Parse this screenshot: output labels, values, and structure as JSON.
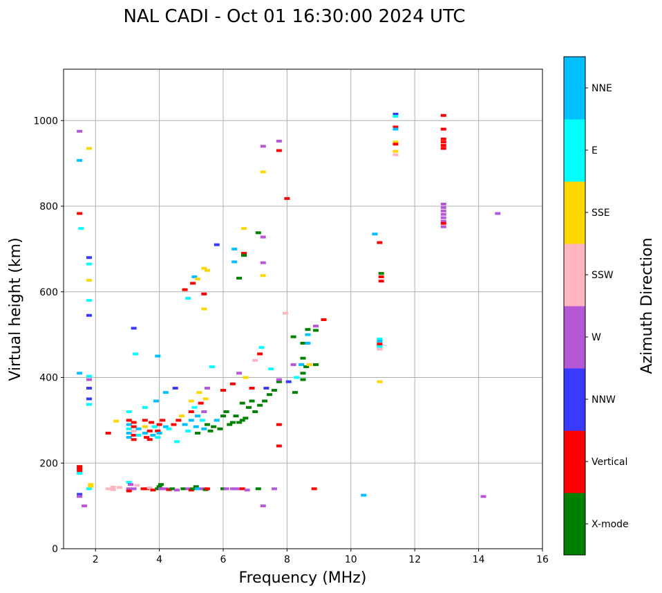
{
  "chart_data": {
    "type": "scatter",
    "title": "NAL CADI - Oct 01 16:30:00 2024 UTC",
    "xlabel": "Frequency (MHz)",
    "ylabel": "Virtual height (km)",
    "xlim": [
      1,
      16
    ],
    "ylim": [
      0,
      1120
    ],
    "xticks": [
      2,
      4,
      6,
      8,
      10,
      12,
      14,
      16
    ],
    "yticks": [
      0,
      200,
      400,
      600,
      800,
      1000
    ],
    "grid": true,
    "colorbar": {
      "label": "Azimuth Direction",
      "categories": [
        {
          "name": "X-mode",
          "color": "#008000"
        },
        {
          "name": "Vertical",
          "color": "#ff0000"
        },
        {
          "name": "NNW",
          "color": "#3a3aff"
        },
        {
          "name": "W",
          "color": "#b657d6"
        },
        {
          "name": "SSW",
          "color": "#ffb6c1"
        },
        {
          "name": "SSE",
          "color": "#ffd700"
        },
        {
          "name": "E",
          "color": "#00ffff"
        },
        {
          "name": "NNE",
          "color": "#00bfff"
        }
      ]
    },
    "points_format": [
      "frequency_mhz",
      "virtual_height_km",
      "category_index"
    ],
    "points": [
      [
        1.5,
        975,
        3
      ],
      [
        1.5,
        907,
        7
      ],
      [
        1.5,
        783,
        1
      ],
      [
        1.55,
        748,
        6
      ],
      [
        1.5,
        410,
        7
      ],
      [
        1.5,
        192,
        1
      ],
      [
        1.5,
        186,
        1
      ],
      [
        1.5,
        180,
        1
      ],
      [
        1.5,
        176,
        6
      ],
      [
        1.5,
        127,
        2
      ],
      [
        1.5,
        122,
        3
      ],
      [
        1.65,
        100,
        3
      ],
      [
        1.8,
        935,
        5
      ],
      [
        1.8,
        680,
        2
      ],
      [
        1.8,
        665,
        6
      ],
      [
        1.8,
        627,
        5
      ],
      [
        1.8,
        580,
        6
      ],
      [
        1.8,
        545,
        2
      ],
      [
        1.8,
        403,
        6
      ],
      [
        1.8,
        395,
        3
      ],
      [
        1.8,
        375,
        2
      ],
      [
        1.8,
        350,
        2
      ],
      [
        1.8,
        337,
        6
      ],
      [
        1.85,
        150,
        5
      ],
      [
        1.8,
        140,
        6
      ],
      [
        1.85,
        146,
        5
      ],
      [
        2.4,
        270,
        1
      ],
      [
        2.65,
        298,
        5
      ],
      [
        2.4,
        140,
        4
      ],
      [
        2.55,
        138,
        4
      ],
      [
        2.55,
        144,
        4
      ],
      [
        2.75,
        143,
        4
      ],
      [
        3.05,
        320,
        6
      ],
      [
        3.05,
        300,
        1
      ],
      [
        3.05,
        290,
        7
      ],
      [
        3.05,
        280,
        6
      ],
      [
        3.05,
        270,
        7
      ],
      [
        3.05,
        260,
        7
      ],
      [
        3.2,
        295,
        1
      ],
      [
        3.2,
        285,
        1
      ],
      [
        3.2,
        275,
        4
      ],
      [
        3.2,
        265,
        1
      ],
      [
        3.2,
        255,
        1
      ],
      [
        3.35,
        280,
        7
      ],
      [
        3.35,
        265,
        6
      ],
      [
        3.55,
        330,
        6
      ],
      [
        3.55,
        300,
        1
      ],
      [
        3.55,
        285,
        5
      ],
      [
        3.55,
        270,
        7
      ],
      [
        3.6,
        260,
        1
      ],
      [
        3.7,
        255,
        1
      ],
      [
        3.7,
        275,
        1
      ],
      [
        3.75,
        295,
        1
      ],
      [
        3.8,
        265,
        7
      ],
      [
        3.85,
        285,
        6
      ],
      [
        3.9,
        345,
        7
      ],
      [
        3.95,
        275,
        1
      ],
      [
        3.95,
        260,
        6
      ],
      [
        4.0,
        290,
        1
      ],
      [
        4.0,
        270,
        7
      ],
      [
        4.1,
        300,
        1
      ],
      [
        4.2,
        285,
        7
      ],
      [
        4.2,
        365,
        7
      ],
      [
        4.3,
        280,
        6
      ],
      [
        4.45,
        290,
        1
      ],
      [
        4.5,
        375,
        2
      ],
      [
        4.55,
        250,
        6
      ],
      [
        4.6,
        300,
        1
      ],
      [
        4.7,
        310,
        5
      ],
      [
        4.8,
        290,
        7
      ],
      [
        4.9,
        275,
        6
      ],
      [
        5.0,
        300,
        7
      ],
      [
        5.0,
        320,
        1
      ],
      [
        5.0,
        345,
        5
      ],
      [
        5.1,
        330,
        6
      ],
      [
        5.15,
        285,
        7
      ],
      [
        5.2,
        310,
        7
      ],
      [
        5.2,
        270,
        0
      ],
      [
        5.25,
        365,
        5
      ],
      [
        5.3,
        340,
        1
      ],
      [
        5.35,
        300,
        6
      ],
      [
        5.4,
        280,
        7
      ],
      [
        5.4,
        320,
        3
      ],
      [
        5.45,
        350,
        5
      ],
      [
        5.5,
        375,
        3
      ],
      [
        5.5,
        290,
        0
      ],
      [
        5.6,
        275,
        0
      ],
      [
        5.65,
        425,
        6
      ],
      [
        5.7,
        285,
        0
      ],
      [
        5.8,
        300,
        7
      ],
      [
        5.9,
        280,
        0
      ],
      [
        6.0,
        310,
        0
      ],
      [
        6.0,
        370,
        1
      ],
      [
        6.1,
        320,
        0
      ],
      [
        6.2,
        290,
        0
      ],
      [
        6.3,
        295,
        0
      ],
      [
        6.3,
        385,
        1
      ],
      [
        6.4,
        310,
        0
      ],
      [
        6.5,
        295,
        0
      ],
      [
        6.5,
        410,
        3
      ],
      [
        6.6,
        300,
        0
      ],
      [
        6.6,
        340,
        0
      ],
      [
        6.7,
        305,
        0
      ],
      [
        6.7,
        400,
        5
      ],
      [
        6.8,
        330,
        0
      ],
      [
        6.9,
        345,
        0
      ],
      [
        6.9,
        375,
        1
      ],
      [
        7.0,
        320,
        0
      ],
      [
        7.0,
        440,
        4
      ],
      [
        7.15,
        335,
        0
      ],
      [
        7.15,
        455,
        1
      ],
      [
        7.2,
        470,
        6
      ],
      [
        7.3,
        345,
        0
      ],
      [
        7.35,
        375,
        2
      ],
      [
        7.45,
        360,
        0
      ],
      [
        7.5,
        420,
        6
      ],
      [
        7.6,
        370,
        0
      ],
      [
        7.75,
        390,
        0
      ],
      [
        7.75,
        395,
        3
      ],
      [
        7.75,
        290,
        1
      ],
      [
        7.75,
        240,
        1
      ],
      [
        7.95,
        550,
        4
      ],
      [
        8.05,
        390,
        2
      ],
      [
        8.25,
        365,
        0
      ],
      [
        8.3,
        400,
        6
      ],
      [
        8.2,
        430,
        3
      ],
      [
        8.45,
        430,
        7
      ],
      [
        8.5,
        395,
        0
      ],
      [
        8.5,
        410,
        0
      ],
      [
        8.6,
        425,
        0
      ],
      [
        8.7,
        430,
        5
      ],
      [
        8.9,
        430,
        0
      ],
      [
        8.5,
        445,
        0
      ],
      [
        8.5,
        480,
        0
      ],
      [
        8.65,
        480,
        7
      ],
      [
        8.2,
        495,
        0
      ],
      [
        8.65,
        500,
        7
      ],
      [
        8.65,
        512,
        0
      ],
      [
        8.9,
        510,
        0
      ],
      [
        8.9,
        520,
        3
      ],
      [
        9.15,
        535,
        1
      ],
      [
        3.25,
        455,
        6
      ],
      [
        3.95,
        450,
        7
      ],
      [
        3.2,
        515,
        2
      ],
      [
        4.8,
        605,
        1
      ],
      [
        4.9,
        585,
        6
      ],
      [
        5.05,
        620,
        1
      ],
      [
        5.1,
        635,
        7
      ],
      [
        5.2,
        630,
        5
      ],
      [
        5.4,
        595,
        1
      ],
      [
        5.4,
        560,
        5
      ],
      [
        5.4,
        655,
        5
      ],
      [
        5.5,
        650,
        5
      ],
      [
        5.8,
        710,
        2
      ],
      [
        6.35,
        700,
        7
      ],
      [
        6.35,
        670,
        7
      ],
      [
        6.5,
        632,
        0
      ],
      [
        6.65,
        690,
        1
      ],
      [
        6.65,
        685,
        0
      ],
      [
        6.65,
        748,
        5
      ],
      [
        7.1,
        738,
        0
      ],
      [
        7.25,
        728,
        3
      ],
      [
        7.25,
        668,
        3
      ],
      [
        7.25,
        638,
        5
      ],
      [
        7.25,
        940,
        3
      ],
      [
        7.25,
        880,
        5
      ],
      [
        7.75,
        952,
        3
      ],
      [
        7.75,
        930,
        1
      ],
      [
        8.0,
        818,
        1
      ],
      [
        10.75,
        735,
        7
      ],
      [
        10.9,
        715,
        1
      ],
      [
        10.9,
        490,
        6
      ],
      [
        10.9,
        485,
        7
      ],
      [
        10.9,
        478,
        1
      ],
      [
        10.9,
        472,
        6
      ],
      [
        10.9,
        466,
        4
      ],
      [
        10.9,
        390,
        5
      ],
      [
        10.95,
        643,
        0
      ],
      [
        10.95,
        635,
        1
      ],
      [
        10.95,
        625,
        1
      ],
      [
        11.4,
        1015,
        2
      ],
      [
        11.4,
        1010,
        6
      ],
      [
        11.4,
        985,
        1
      ],
      [
        11.4,
        980,
        7
      ],
      [
        11.4,
        950,
        5
      ],
      [
        11.4,
        945,
        1
      ],
      [
        11.4,
        928,
        5
      ],
      [
        11.4,
        920,
        4
      ],
      [
        12.9,
        1012,
        1
      ],
      [
        12.9,
        980,
        1
      ],
      [
        12.9,
        957,
        1
      ],
      [
        12.9,
        950,
        1
      ],
      [
        12.9,
        942,
        1
      ],
      [
        12.9,
        935,
        1
      ],
      [
        12.9,
        805,
        3
      ],
      [
        12.9,
        797,
        3
      ],
      [
        12.9,
        789,
        3
      ],
      [
        12.9,
        781,
        3
      ],
      [
        12.9,
        773,
        3
      ],
      [
        12.9,
        765,
        3
      ],
      [
        12.9,
        760,
        1
      ],
      [
        12.9,
        752,
        3
      ],
      [
        14.6,
        783,
        3
      ],
      [
        14.15,
        122,
        3
      ],
      [
        10.4,
        125,
        7
      ],
      [
        8.85,
        140,
        1
      ],
      [
        3.05,
        155,
        6
      ],
      [
        3.1,
        150,
        3
      ],
      [
        3.3,
        148,
        4
      ],
      [
        3.05,
        140,
        3
      ],
      [
        3.05,
        135,
        1
      ],
      [
        3.2,
        140,
        3
      ],
      [
        3.5,
        140,
        1
      ],
      [
        3.6,
        140,
        1
      ],
      [
        3.7,
        142,
        4
      ],
      [
        3.8,
        137,
        1
      ],
      [
        3.95,
        140,
        0
      ],
      [
        4.0,
        145,
        0
      ],
      [
        4.05,
        150,
        0
      ],
      [
        4.05,
        140,
        3
      ],
      [
        4.2,
        140,
        3
      ],
      [
        4.3,
        138,
        1
      ],
      [
        4.4,
        140,
        0
      ],
      [
        4.55,
        137,
        3
      ],
      [
        4.75,
        140,
        0
      ],
      [
        4.9,
        140,
        3
      ],
      [
        5.0,
        137,
        1
      ],
      [
        5.05,
        140,
        0
      ],
      [
        5.15,
        145,
        0
      ],
      [
        5.2,
        140,
        7
      ],
      [
        5.35,
        140,
        3
      ],
      [
        5.45,
        138,
        0
      ],
      [
        5.5,
        140,
        1
      ],
      [
        6.0,
        140,
        0
      ],
      [
        6.1,
        140,
        3
      ],
      [
        6.3,
        140,
        3
      ],
      [
        6.4,
        140,
        3
      ],
      [
        6.5,
        140,
        3
      ],
      [
        6.6,
        140,
        1
      ],
      [
        6.75,
        137,
        3
      ],
      [
        7.1,
        140,
        0
      ],
      [
        7.6,
        140,
        3
      ],
      [
        7.25,
        100,
        3
      ]
    ]
  }
}
